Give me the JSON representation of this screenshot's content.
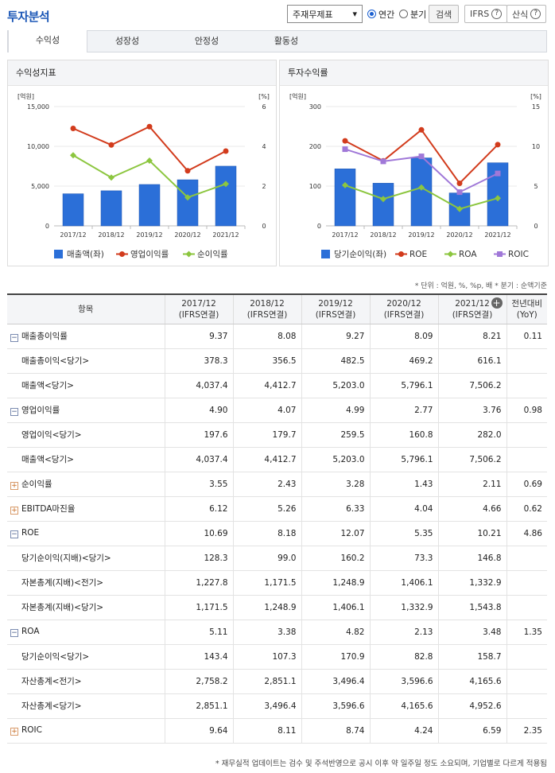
{
  "title": "투자분석",
  "controls": {
    "select_value": "주재무제표",
    "radio_annual": "연간",
    "radio_quarter": "분기",
    "search": "검색",
    "ifrs": "IFRS",
    "formula": "산식",
    "help_glyph": "?"
  },
  "tabs": [
    "수익성",
    "성장성",
    "안정성",
    "활동성"
  ],
  "chart1": {
    "title": "수익성지표",
    "left_unit": "[억원]",
    "right_unit": "[%]",
    "left_ticks": [
      "0",
      "5,000",
      "10,000",
      "15,000"
    ],
    "right_ticks": [
      "0",
      "2",
      "4",
      "6"
    ],
    "legend": [
      "매출액(좌)",
      "영업이익률",
      "순이익률"
    ],
    "colors": {
      "bar": "#2b6fd8",
      "line1": "#d23b1c",
      "line2": "#8cc63f"
    }
  },
  "chart2": {
    "title": "투자수익률",
    "left_unit": "[억원]",
    "right_unit": "[%]",
    "left_ticks": [
      "0",
      "100",
      "200",
      "300"
    ],
    "right_ticks": [
      "0",
      "5",
      "10",
      "15"
    ],
    "legend": [
      "당기순이익(좌)",
      "ROE",
      "ROA",
      "ROIC"
    ],
    "colors": {
      "bar": "#2b6fd8",
      "roe": "#d23b1c",
      "roa": "#8cc63f",
      "roic": "#a078d8"
    }
  },
  "chart_data": [
    {
      "type": "bar",
      "categories": [
        "2017/12",
        "2018/12",
        "2019/12",
        "2020/12",
        "2021/12"
      ],
      "ylim": [
        0,
        15000
      ],
      "y2lim": [
        0,
        6
      ],
      "series": [
        {
          "name": "매출액(좌)",
          "type": "bar",
          "axis": "left",
          "values": [
            4037.4,
            4412.7,
            5203.0,
            5796.1,
            7506.2
          ]
        },
        {
          "name": "영업이익률",
          "type": "line",
          "axis": "right",
          "values": [
            4.9,
            4.07,
            4.99,
            2.77,
            3.76
          ]
        },
        {
          "name": "순이익률",
          "type": "line",
          "axis": "right",
          "values": [
            3.55,
            2.43,
            3.28,
            1.43,
            2.11
          ]
        }
      ]
    },
    {
      "type": "bar",
      "categories": [
        "2017/12",
        "2018/12",
        "2019/12",
        "2020/12",
        "2021/12"
      ],
      "ylim": [
        0,
        300
      ],
      "y2lim": [
        0,
        15
      ],
      "series": [
        {
          "name": "당기순이익(좌)",
          "type": "bar",
          "axis": "left",
          "values": [
            143.4,
            107.3,
            170.9,
            82.8,
            158.7
          ]
        },
        {
          "name": "ROE",
          "type": "line",
          "axis": "right",
          "values": [
            10.69,
            8.18,
            12.07,
            5.35,
            10.21
          ]
        },
        {
          "name": "ROA",
          "type": "line",
          "axis": "right",
          "values": [
            5.11,
            3.38,
            4.82,
            2.13,
            3.48
          ]
        },
        {
          "name": "ROIC",
          "type": "line",
          "axis": "right",
          "values": [
            9.64,
            8.11,
            8.74,
            4.24,
            6.59
          ]
        }
      ]
    }
  ],
  "unit_note": "* 단위 : 억원, %, %p, 배   * 분기 : 순액기준",
  "table": {
    "head": [
      "항목",
      "2017/12",
      "2018/12",
      "2019/12",
      "2020/12",
      "2021/12",
      "전년대비"
    ],
    "head_sub": [
      "",
      "(IFRS연결)",
      "(IFRS연결)",
      "(IFRS연결)",
      "(IFRS연결)",
      "(IFRS연결)",
      "(YoY)"
    ],
    "expand_icon": "+",
    "rows": [
      {
        "name": "매출총이익률",
        "level": 0,
        "toggle": "−",
        "v": [
          "9.37",
          "8.08",
          "9.27",
          "8.09",
          "8.21",
          "0.11"
        ]
      },
      {
        "name": "매출총이익<당기>",
        "level": 1,
        "toggle": "",
        "v": [
          "378.3",
          "356.5",
          "482.5",
          "469.2",
          "616.1",
          ""
        ]
      },
      {
        "name": "매출액<당기>",
        "level": 1,
        "toggle": "",
        "v": [
          "4,037.4",
          "4,412.7",
          "5,203.0",
          "5,796.1",
          "7,506.2",
          ""
        ]
      },
      {
        "name": "영업이익률",
        "level": 0,
        "toggle": "−",
        "v": [
          "4.90",
          "4.07",
          "4.99",
          "2.77",
          "3.76",
          "0.98"
        ]
      },
      {
        "name": "영업이익<당기>",
        "level": 1,
        "toggle": "",
        "v": [
          "197.6",
          "179.7",
          "259.5",
          "160.8",
          "282.0",
          ""
        ]
      },
      {
        "name": "매출액<당기>",
        "level": 1,
        "toggle": "",
        "v": [
          "4,037.4",
          "4,412.7",
          "5,203.0",
          "5,796.1",
          "7,506.2",
          ""
        ]
      },
      {
        "name": "순이익률",
        "level": 0,
        "toggle": "+",
        "v": [
          "3.55",
          "2.43",
          "3.28",
          "1.43",
          "2.11",
          "0.69"
        ]
      },
      {
        "name": "EBITDA마진율",
        "level": 0,
        "toggle": "+",
        "v": [
          "6.12",
          "5.26",
          "6.33",
          "4.04",
          "4.66",
          "0.62"
        ]
      },
      {
        "name": "ROE",
        "level": 0,
        "toggle": "−",
        "v": [
          "10.69",
          "8.18",
          "12.07",
          "5.35",
          "10.21",
          "4.86"
        ]
      },
      {
        "name": "당기순이익(지배)<당기>",
        "level": 1,
        "toggle": "",
        "v": [
          "128.3",
          "99.0",
          "160.2",
          "73.3",
          "146.8",
          ""
        ]
      },
      {
        "name": "자본총계(지배)<전기>",
        "level": 1,
        "toggle": "",
        "v": [
          "1,227.8",
          "1,171.5",
          "1,248.9",
          "1,406.1",
          "1,332.9",
          ""
        ]
      },
      {
        "name": "자본총계(지배)<당기>",
        "level": 1,
        "toggle": "",
        "v": [
          "1,171.5",
          "1,248.9",
          "1,406.1",
          "1,332.9",
          "1,543.8",
          ""
        ]
      },
      {
        "name": "ROA",
        "level": 0,
        "toggle": "−",
        "v": [
          "5.11",
          "3.38",
          "4.82",
          "2.13",
          "3.48",
          "1.35"
        ]
      },
      {
        "name": "당기순이익<당기>",
        "level": 1,
        "toggle": "",
        "v": [
          "143.4",
          "107.3",
          "170.9",
          "82.8",
          "158.7",
          ""
        ]
      },
      {
        "name": "자산총계<전기>",
        "level": 1,
        "toggle": "",
        "v": [
          "2,758.2",
          "2,851.1",
          "3,496.4",
          "3,596.6",
          "4,165.6",
          ""
        ]
      },
      {
        "name": "자산총계<당기>",
        "level": 1,
        "toggle": "",
        "v": [
          "2,851.1",
          "3,496.4",
          "3,596.6",
          "4,165.6",
          "4,952.6",
          ""
        ]
      },
      {
        "name": "ROIC",
        "level": 0,
        "toggle": "+",
        "v": [
          "9.64",
          "8.11",
          "8.74",
          "4.24",
          "6.59",
          "2.35"
        ]
      }
    ]
  },
  "footer_note": "* 재무실적 업데이트는 검수 및 주석반영으로 공시 이후 약 일주일 정도 소요되며, 기업별로 다르게 적용됨"
}
